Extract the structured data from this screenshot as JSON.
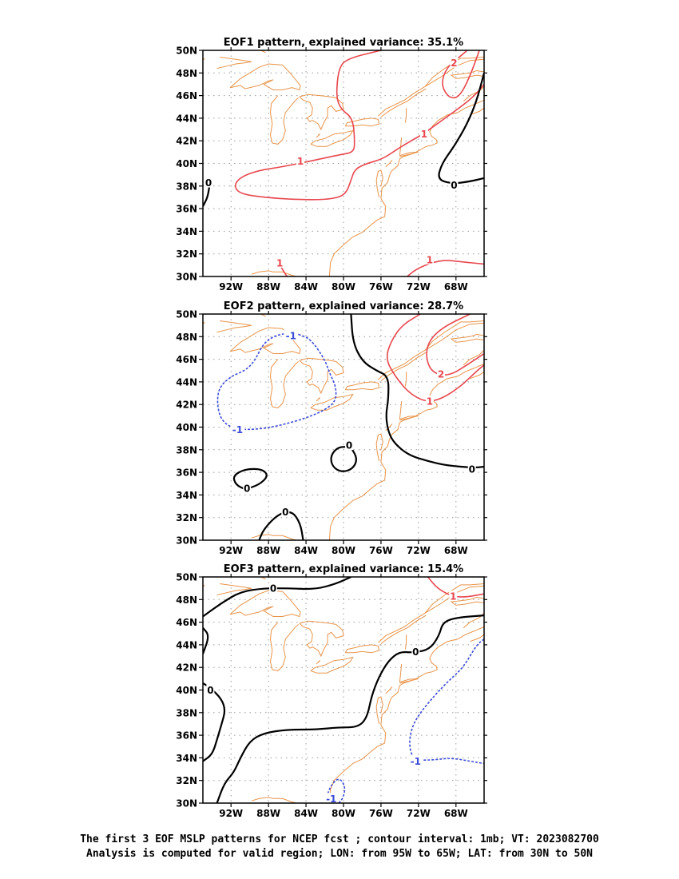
{
  "panels": [
    {
      "title": "EOF1 pattern, explained variance: 35.1%",
      "contours": [
        {
          "value": 2,
          "color": "#e8474e",
          "dashed": false,
          "label": "2",
          "points": [
            [
              -65.5,
              50
            ],
            [
              -66.6,
              47.5
            ],
            [
              -67.7,
              45.8
            ],
            [
              -68.8,
              45.8
            ],
            [
              -69.6,
              47
            ],
            [
              -69.0,
              48.5
            ],
            [
              -67.5,
              49.5
            ],
            [
              -66.8,
              50
            ]
          ],
          "label_at": [
            -68.2,
            48.9
          ]
        },
        {
          "value": 1,
          "color": "#e8474e",
          "dashed": false,
          "label": "1",
          "points": [
            [
              -76.0,
              50
            ],
            [
              -79.5,
              49.3
            ],
            [
              -80.5,
              48.5
            ],
            [
              -80.8,
              46
            ],
            [
              -80.3,
              44.8
            ],
            [
              -79.0,
              44
            ],
            [
              -78.8,
              42
            ],
            [
              -78.9,
              41
            ],
            [
              -80.2,
              40.8
            ],
            [
              -83.0,
              40.3
            ],
            [
              -86.5,
              39.7
            ],
            [
              -89.0,
              39.4
            ],
            [
              -91.0,
              38.8
            ],
            [
              -91.7,
              38
            ],
            [
              -91.0,
              37.3
            ],
            [
              -88.5,
              37
            ],
            [
              -85.0,
              36.8
            ],
            [
              -81.5,
              36.8
            ],
            [
              -79.8,
              37.2
            ],
            [
              -79.2,
              38.5
            ],
            [
              -78.8,
              39.5
            ],
            [
              -77.5,
              40
            ],
            [
              -75.8,
              40.4
            ],
            [
              -74.2,
              41.3
            ],
            [
              -72.8,
              42
            ],
            [
              -71.5,
              42.6
            ],
            [
              -70.0,
              43.5
            ],
            [
              -67.5,
              45
            ],
            [
              -66.0,
              46
            ],
            [
              -65,
              47
            ]
          ],
          "label_at": [
            -84.6,
            40.2
          ],
          "label_at2": [
            -71.4,
            42.6
          ]
        },
        {
          "value": 1,
          "color": "#e8474e",
          "dashed": false,
          "label": "1",
          "points": [
            [
              -73.2,
              30
            ],
            [
              -72.0,
              30.8
            ],
            [
              -69.5,
              31.5
            ],
            [
              -67.5,
              31.3
            ],
            [
              -65,
              31.1
            ]
          ],
          "label_at": [
            -70.8,
            31.5
          ]
        },
        {
          "value": 1,
          "color": "#e8474e",
          "dashed": false,
          "label": "1",
          "points": [
            [
              -87.2,
              31.6
            ],
            [
              -86.2,
              30.2
            ],
            [
              -86.0,
              30
            ]
          ],
          "label_at": [
            -86.8,
            31.2
          ]
        },
        {
          "value": 0,
          "color": "#000000",
          "dashed": false,
          "label": "0",
          "points": [
            [
              -65,
              48.0
            ],
            [
              -65.8,
              45.5
            ],
            [
              -66.8,
              43.5
            ],
            [
              -68.2,
              41.5
            ],
            [
              -69.5,
              40
            ],
            [
              -70.0,
              38.6
            ],
            [
              -68.5,
              38.2
            ],
            [
              -66.5,
              38.4
            ],
            [
              -65,
              38.7
            ]
          ],
          "label_at": [
            -68.2,
            38.1
          ]
        },
        {
          "value": 0,
          "color": "#000000",
          "dashed": false,
          "label": "0",
          "points": [
            [
              -95,
              36.2
            ],
            [
              -94.5,
              37
            ],
            [
              -94.3,
              38
            ]
          ],
          "label_at": [
            -94.4,
            38.3
          ]
        }
      ]
    },
    {
      "title": "EOF2 pattern, explained variance: 28.7%",
      "contours": [
        {
          "value": 2,
          "color": "#e8474e",
          "dashed": false,
          "label": "2",
          "points": [
            [
              -66.5,
              50
            ],
            [
              -69.5,
              48.8
            ],
            [
              -71.0,
              47.5
            ],
            [
              -71.2,
              46
            ],
            [
              -70.5,
              44.8
            ],
            [
              -68.8,
              44.5
            ],
            [
              -66.8,
              45.5
            ],
            [
              -65,
              46.5
            ]
          ],
          "label_at": [
            -69.6,
            44.7
          ]
        },
        {
          "value": 1,
          "color": "#e8474e",
          "dashed": false,
          "label": "1",
          "points": [
            [
              -71.8,
              50
            ],
            [
              -73.8,
              49
            ],
            [
              -75.0,
              47.5
            ],
            [
              -75.5,
              46
            ],
            [
              -74.5,
              44.5
            ],
            [
              -73.0,
              43
            ],
            [
              -71.2,
              42.2
            ],
            [
              -69.5,
              42.5
            ],
            [
              -67.5,
              43.6
            ],
            [
              -66.0,
              44.8
            ],
            [
              -65,
              45.5
            ]
          ],
          "label_at": [
            -70.8,
            42.3
          ]
        },
        {
          "value": 0,
          "color": "#000000",
          "dashed": false,
          "label": "0",
          "points": [
            [
              -79.2,
              50
            ],
            [
              -79.0,
              47.5
            ],
            [
              -78.0,
              45.8
            ],
            [
              -76.5,
              45
            ],
            [
              -75.2,
              44.5
            ],
            [
              -75.2,
              42.5
            ],
            [
              -75.5,
              41
            ],
            [
              -75.2,
              39.5
            ],
            [
              -74.5,
              38.5
            ],
            [
              -73.0,
              37.5
            ],
            [
              -71.0,
              37.0
            ],
            [
              -69.0,
              36.6
            ],
            [
              -66.0,
              36.4
            ],
            [
              -65,
              36.5
            ]
          ],
          "label_at": [
            -66.3,
            36.3
          ]
        },
        {
          "value": -1,
          "color": "#3b4bd8",
          "dashed": true,
          "label": "-1",
          "points": [
            [
              -84.8,
              48.2
            ],
            [
              -83.5,
              47.8
            ],
            [
              -82.0,
              46
            ],
            [
              -81.5,
              44.8
            ],
            [
              -80.8,
              43.6
            ],
            [
              -80.8,
              42.3
            ],
            [
              -82.0,
              41.5
            ],
            [
              -84.0,
              40.8
            ],
            [
              -86.5,
              40.2
            ],
            [
              -89.0,
              39.8
            ],
            [
              -91.5,
              39.8
            ],
            [
              -93.0,
              40.5
            ],
            [
              -93.5,
              42
            ],
            [
              -93.3,
              43.5
            ],
            [
              -92.0,
              44.5
            ],
            [
              -90.5,
              45
            ],
            [
              -89.5,
              45.8
            ],
            [
              -88.5,
              47.5
            ],
            [
              -87.0,
              48.2
            ],
            [
              -85.5,
              48.3
            ],
            [
              -84.8,
              48.2
            ]
          ],
          "label_at": [
            -91.3,
            39.8
          ],
          "label_at2": [
            -85.6,
            48.1
          ]
        },
        {
          "value": 0,
          "color": "#000000",
          "dashed": false,
          "label": "0",
          "points": [
            [
              -79.2,
              38.2
            ],
            [
              -78.5,
              37.2
            ],
            [
              -79.0,
              36.3
            ],
            [
              -80.2,
              36.0
            ],
            [
              -81.2,
              36.5
            ],
            [
              -81.4,
              37.5
            ],
            [
              -80.5,
              38.3
            ],
            [
              -79.2,
              38.2
            ]
          ],
          "label_at": [
            -79.4,
            38.4
          ]
        },
        {
          "value": 0,
          "color": "#000000",
          "dashed": false,
          "label": "0",
          "points": [
            [
              -90.5,
              34.5
            ],
            [
              -89.0,
              34.9
            ],
            [
              -88.0,
              35.7
            ],
            [
              -88.7,
              36.3
            ],
            [
              -90.5,
              36.3
            ],
            [
              -91.8,
              35.7
            ],
            [
              -91.5,
              34.9
            ],
            [
              -90.5,
              34.5
            ]
          ],
          "label_at": [
            -90.3,
            34.6
          ]
        },
        {
          "value": 0,
          "color": "#000000",
          "dashed": false,
          "label": "0",
          "points": [
            [
              -89.0,
              30
            ],
            [
              -88.5,
              31
            ],
            [
              -87.0,
              32.3
            ],
            [
              -85.5,
              32.6
            ],
            [
              -84.6,
              31.5
            ],
            [
              -84.3,
              30
            ]
          ],
          "label_at": [
            -86.2,
            32.5
          ]
        }
      ]
    },
    {
      "title": "EOF3 pattern, explained variance: 15.4%",
      "contours": [
        {
          "value": 1,
          "color": "#e8474e",
          "dashed": false,
          "label": "1",
          "points": [
            [
              -71.0,
              50
            ],
            [
              -70.0,
              49
            ],
            [
              -68.5,
              48.3
            ],
            [
              -67.0,
              48.2
            ],
            [
              -65,
              48.5
            ]
          ],
          "label_at": [
            -68.3,
            48.3
          ]
        },
        {
          "value": 0,
          "color": "#000000",
          "dashed": false,
          "label": "0",
          "points": [
            [
              -95,
              46.5
            ],
            [
              -93.0,
              47.7
            ],
            [
              -91.0,
              48.7
            ],
            [
              -88.5,
              49.0
            ],
            [
              -86.0,
              49.0
            ],
            [
              -83.0,
              48.9
            ],
            [
              -80.8,
              49.4
            ],
            [
              -79.2,
              50
            ]
          ],
          "label_at": [
            -87.5,
            49
          ]
        },
        {
          "value": 0,
          "color": "#000000",
          "dashed": false,
          "label": "0",
          "points": [
            [
              -95,
              45.5
            ],
            [
              -94.3,
              44.8
            ],
            [
              -95,
              43.2
            ]
          ],
          "label_at": null
        },
        {
          "value": 0,
          "color": "#000000",
          "dashed": false,
          "label": "0",
          "points": [
            [
              -93.5,
              30
            ],
            [
              -92.7,
              31.8
            ],
            [
              -91.7,
              32.7
            ],
            [
              -91.0,
              34.0
            ],
            [
              -90.0,
              35.5
            ],
            [
              -88.5,
              36.2
            ],
            [
              -86.0,
              36.5
            ],
            [
              -83.0,
              36.5
            ],
            [
              -80.5,
              36.7
            ],
            [
              -78.5,
              36.7
            ],
            [
              -77.5,
              37.5
            ],
            [
              -77.0,
              39.5
            ],
            [
              -76.2,
              41.2
            ],
            [
              -75.2,
              42.6
            ],
            [
              -74.0,
              43.4
            ],
            [
              -72.5,
              43.3
            ],
            [
              -70.8,
              43.6
            ],
            [
              -69.8,
              44.8
            ],
            [
              -69.4,
              46
            ],
            [
              -68.0,
              46.4
            ],
            [
              -65,
              46.6
            ]
          ],
          "label_at": [
            -72.3,
            43.4
          ]
        },
        {
          "value": 0,
          "color": "#000000",
          "dashed": false,
          "label": "0",
          "points": [
            [
              -95,
              33.7
            ],
            [
              -94.0,
              34.3
            ],
            [
              -93.5,
              35.6
            ],
            [
              -93.0,
              37
            ],
            [
              -92.6,
              38.2
            ],
            [
              -93.0,
              39.2
            ],
            [
              -94.2,
              40.2
            ],
            [
              -95,
              40.6
            ]
          ],
          "label_at": [
            -94.2,
            40
          ]
        },
        {
          "value": -1,
          "color": "#3b4bd8",
          "dashed": true,
          "label": "-1",
          "points": [
            [
              -65,
              44.5
            ],
            [
              -65.8,
              44.0
            ],
            [
              -67.2,
              42.0
            ],
            [
              -68.8,
              40.8
            ],
            [
              -70.3,
              39.5
            ],
            [
              -72.0,
              37.8
            ],
            [
              -72.8,
              36.5
            ],
            [
              -73.0,
              35.0
            ],
            [
              -72.5,
              33.8
            ],
            [
              -70.5,
              33.8
            ],
            [
              -68.5,
              34.0
            ],
            [
              -66.5,
              33.7
            ],
            [
              -65,
              33.5
            ]
          ],
          "label_at": [
            -72.3,
            33.7
          ]
        },
        {
          "value": -1,
          "color": "#3b4bd8",
          "dashed": true,
          "label": "-1",
          "points": [
            [
              -81.8,
              30.5
            ],
            [
              -81.4,
              31.5
            ],
            [
              -80.5,
              32.3
            ],
            [
              -79.8,
              31.5
            ],
            [
              -80.0,
              30.5
            ],
            [
              -80.5,
              30
            ]
          ],
          "label_at": [
            -81.3,
            30.4
          ]
        }
      ]
    }
  ],
  "axes": {
    "lon_range": [
      -95,
      -65
    ],
    "lat_range": [
      30,
      50
    ],
    "lon_ticks": [
      -92,
      -88,
      -84,
      -80,
      -76,
      -72,
      -68
    ],
    "lat_ticks": [
      30,
      32,
      34,
      36,
      38,
      40,
      42,
      44,
      46,
      48,
      50
    ],
    "lon_tick_labels": [
      "92W",
      "88W",
      "84W",
      "80W",
      "76W",
      "72W",
      "68W"
    ],
    "lat_tick_labels": [
      "30N",
      "32N",
      "34N",
      "36N",
      "38N",
      "40N",
      "42N",
      "44N",
      "46N",
      "48N",
      "50N"
    ],
    "grid": true
  },
  "colors": {
    "positive": "#e8474e",
    "negative": "#3b4bd8",
    "zero": "#000000",
    "coastline": "#e8944a"
  },
  "caption": {
    "line1": "The first 3 EOF MSLP patterns for NCEP fcst ; contour interval: 1mb; VT: 2023082700",
    "line2": "Analysis is computed for valid region; LON: from 95W to 65W; LAT: from 30N to 50N"
  }
}
